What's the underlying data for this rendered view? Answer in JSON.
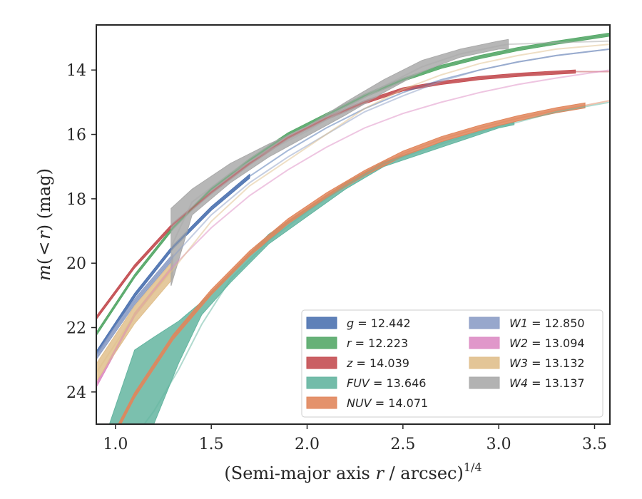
{
  "chart_data": {
    "type": "line",
    "title": "",
    "xlabel": "(Semi-major axis r / arcsec)",
    "xlabel_exp": "1/4",
    "xlabel_parts": [
      "(Semi-major axis ",
      "r",
      " / arcsec)"
    ],
    "ylabel_parts": [
      "m",
      "(",
      "<",
      "r",
      ") (mag)"
    ],
    "xlim": [
      0.9,
      3.58
    ],
    "ylim": [
      25.0,
      12.6
    ],
    "y_inverted": true,
    "grid": false,
    "legend_position": "lower-right",
    "x_ticks": [
      1.0,
      1.5,
      2.0,
      2.5,
      3.0,
      3.5
    ],
    "x_tick_labels": [
      "1.0",
      "1.5",
      "2.0",
      "2.5",
      "3.0",
      "3.5"
    ],
    "y_ticks": [
      14,
      16,
      18,
      20,
      22,
      24
    ],
    "y_tick_labels": [
      "14",
      "16",
      "18",
      "20",
      "22",
      "24"
    ],
    "series": [
      {
        "name": "g",
        "value": "12.442",
        "color": "#4c72b0",
        "x": [
          0.9,
          1.1,
          1.3,
          1.5,
          1.7,
          1.9,
          2.1,
          2.3,
          2.5,
          2.7,
          2.9,
          3.1,
          3.3,
          3.58
        ],
        "y": [
          22.8,
          21.0,
          19.5,
          18.3,
          17.3,
          16.5,
          15.8,
          15.2,
          14.7,
          14.3,
          14.0,
          13.75,
          13.55,
          13.35
        ],
        "band_width": 0.12,
        "solid_until": 1.7
      },
      {
        "name": "r",
        "value": "12.223",
        "color": "#55a868",
        "x": [
          0.9,
          1.1,
          1.3,
          1.5,
          1.7,
          1.9,
          2.1,
          2.3,
          2.5,
          2.7,
          2.9,
          3.1,
          3.3,
          3.58
        ],
        "y": [
          22.2,
          20.4,
          18.9,
          17.7,
          16.8,
          16.0,
          15.4,
          14.8,
          14.3,
          13.9,
          13.6,
          13.35,
          13.15,
          12.9
        ],
        "band_width": 0.1,
        "solid_until": 3.58
      },
      {
        "name": "z",
        "value": "14.039",
        "color": "#c44e52",
        "x": [
          0.9,
          1.1,
          1.3,
          1.5,
          1.7,
          1.9,
          2.1,
          2.3,
          2.5,
          2.7,
          2.9,
          3.1,
          3.3,
          3.4,
          3.58
        ],
        "y": [
          21.7,
          20.1,
          18.8,
          17.8,
          16.9,
          16.1,
          15.5,
          15.0,
          14.6,
          14.4,
          14.25,
          14.15,
          14.08,
          14.05,
          14.05
        ],
        "band_width": 0.1,
        "solid_until": 3.4
      },
      {
        "name": "FUV",
        "value": "13.646",
        "color": "#64b5a0",
        "x": [
          0.9,
          1.1,
          1.2,
          1.33,
          1.45,
          1.6,
          1.8,
          2.0,
          2.2,
          2.4,
          2.6,
          2.8,
          3.0,
          3.08,
          3.3,
          3.58
        ],
        "y": [
          26.8,
          25.4,
          24.6,
          23.3,
          21.9,
          20.5,
          19.3,
          18.4,
          17.6,
          16.9,
          16.5,
          16.1,
          15.75,
          15.65,
          15.3,
          15.0
        ],
        "band_upper": [
          26.2,
          22.7,
          22.3,
          21.8,
          21.2,
          20.3,
          19.1,
          18.3,
          17.5,
          16.85,
          16.45,
          16.05,
          15.72,
          15.62,
          15.3,
          15.0
        ],
        "band_lower": [
          27.4,
          25.6,
          25.0,
          23.1,
          21.6,
          20.6,
          19.4,
          18.55,
          17.7,
          17.0,
          16.6,
          16.2,
          15.8,
          15.7,
          15.3,
          15.0
        ],
        "solid_until": 3.08
      },
      {
        "name": "NUV",
        "value": "14.071",
        "color": "#e1865c",
        "x": [
          0.9,
          1.1,
          1.3,
          1.5,
          1.7,
          1.9,
          2.1,
          2.3,
          2.5,
          2.7,
          2.9,
          3.1,
          3.3,
          3.45,
          3.58
        ],
        "y": [
          26.4,
          24.1,
          22.3,
          20.9,
          19.7,
          18.7,
          17.9,
          17.2,
          16.6,
          16.15,
          15.8,
          15.5,
          15.25,
          15.1,
          14.95
        ],
        "band_width": 0.16,
        "solid_until": 3.45
      },
      {
        "name": "W1",
        "value": "12.850",
        "color": "#8c9dc6",
        "x": [
          0.9,
          1.1,
          1.3,
          1.5,
          1.7,
          1.9,
          2.1,
          2.3,
          2.5,
          2.7,
          2.9,
          3.1,
          3.3,
          3.58
        ],
        "y": [
          22.9,
          21.2,
          19.8,
          18.5,
          17.5,
          16.7,
          16.0,
          15.3,
          14.8,
          14.35,
          14.0,
          13.75,
          13.55,
          13.35
        ],
        "band_width": 0.18,
        "solid_until": 1.3
      },
      {
        "name": "W2",
        "value": "13.094",
        "color": "#dd8cc4",
        "x": [
          0.9,
          1.1,
          1.3,
          1.5,
          1.7,
          1.9,
          2.1,
          2.3,
          2.5,
          2.7,
          2.9,
          3.1,
          3.3,
          3.58
        ],
        "y": [
          23.8,
          21.6,
          20.1,
          18.9,
          17.9,
          17.1,
          16.4,
          15.8,
          15.35,
          15.0,
          14.7,
          14.45,
          14.25,
          14.0
        ],
        "band_width": 0.12,
        "solid_until": 1.3
      },
      {
        "name": "W3",
        "value": "13.132",
        "color": "#e0bf8c",
        "x": [
          0.9,
          1.1,
          1.3,
          1.5,
          1.7,
          1.9,
          2.1,
          2.3,
          2.5,
          2.7,
          2.9,
          3.1,
          3.3,
          3.58
        ],
        "y": [
          23.4,
          21.6,
          20.2,
          18.7,
          17.6,
          16.8,
          16.0,
          15.2,
          14.6,
          14.15,
          13.8,
          13.55,
          13.35,
          13.2
        ],
        "band_width": 0.55,
        "solid_until": 1.3
      },
      {
        "name": "W4",
        "value": "13.137",
        "color": "#aaaaaa",
        "x": [
          1.29,
          1.4,
          1.6,
          1.8,
          2.0,
          2.2,
          2.4,
          2.6,
          2.8,
          3.0,
          3.05,
          3.3,
          3.58
        ],
        "y": [
          19.5,
          18.1,
          17.2,
          16.5,
          15.9,
          15.2,
          14.5,
          13.9,
          13.5,
          13.25,
          13.2,
          13.15,
          13.1
        ],
        "band_upper": [
          18.3,
          17.7,
          16.9,
          16.3,
          15.75,
          15.0,
          14.3,
          13.7,
          13.35,
          13.1,
          13.05,
          13.15,
          13.1
        ],
        "band_lower": [
          20.7,
          18.5,
          17.5,
          16.7,
          16.05,
          15.4,
          14.7,
          14.05,
          13.6,
          13.35,
          13.35,
          13.15,
          13.1
        ],
        "solid_until": 3.05
      }
    ]
  }
}
